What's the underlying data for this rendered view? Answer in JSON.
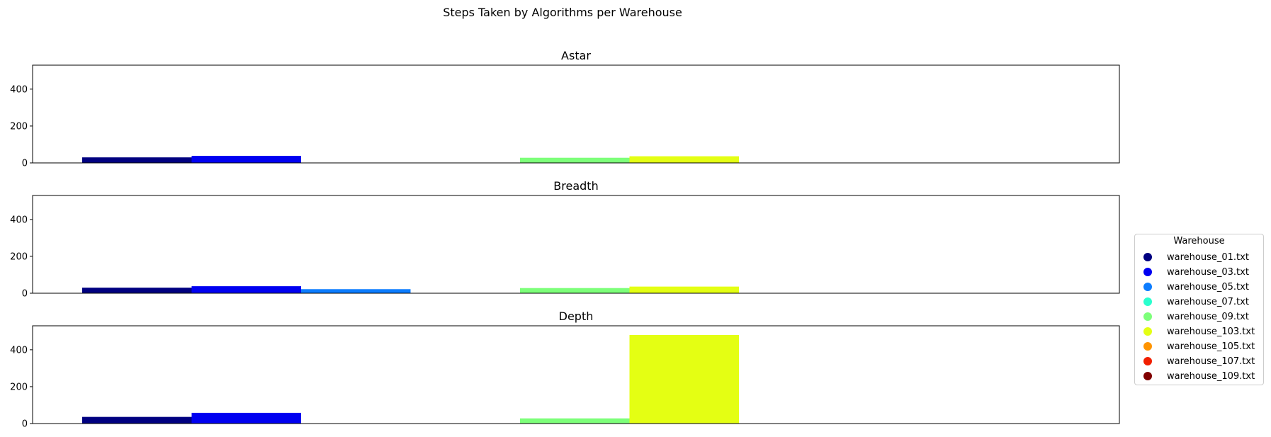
{
  "chart_data": {
    "type": "bar",
    "title": "Steps Taken by Algorithms per Warehouse",
    "legend": {
      "title": "Warehouse",
      "placement": "center-right outside"
    },
    "warehouses": [
      {
        "name": "warehouse_01.txt",
        "color": "#000080"
      },
      {
        "name": "warehouse_03.txt",
        "color": "#0000f1"
      },
      {
        "name": "warehouse_05.txt",
        "color": "#0d7dff"
      },
      {
        "name": "warehouse_07.txt",
        "color": "#29ffce"
      },
      {
        "name": "warehouse_09.txt",
        "color": "#7dff7a"
      },
      {
        "name": "warehouse_103.txt",
        "color": "#e4ff13"
      },
      {
        "name": "warehouse_105.txt",
        "color": "#ff9400"
      },
      {
        "name": "warehouse_107.txt",
        "color": "#f11f00"
      },
      {
        "name": "warehouse_109.txt",
        "color": "#800000"
      }
    ],
    "ylim": [
      0,
      530
    ],
    "yticks": [
      0,
      200,
      400
    ],
    "grid": false,
    "subplots": [
      {
        "title": "Astar",
        "values": [
          30,
          38,
          0,
          0,
          28,
          36,
          0,
          0,
          0
        ]
      },
      {
        "title": "Breadth",
        "values": [
          30,
          38,
          22,
          0,
          28,
          36,
          0,
          0,
          0
        ]
      },
      {
        "title": "Depth",
        "values": [
          36,
          58,
          0,
          0,
          28,
          480,
          0,
          0,
          0
        ]
      }
    ]
  }
}
